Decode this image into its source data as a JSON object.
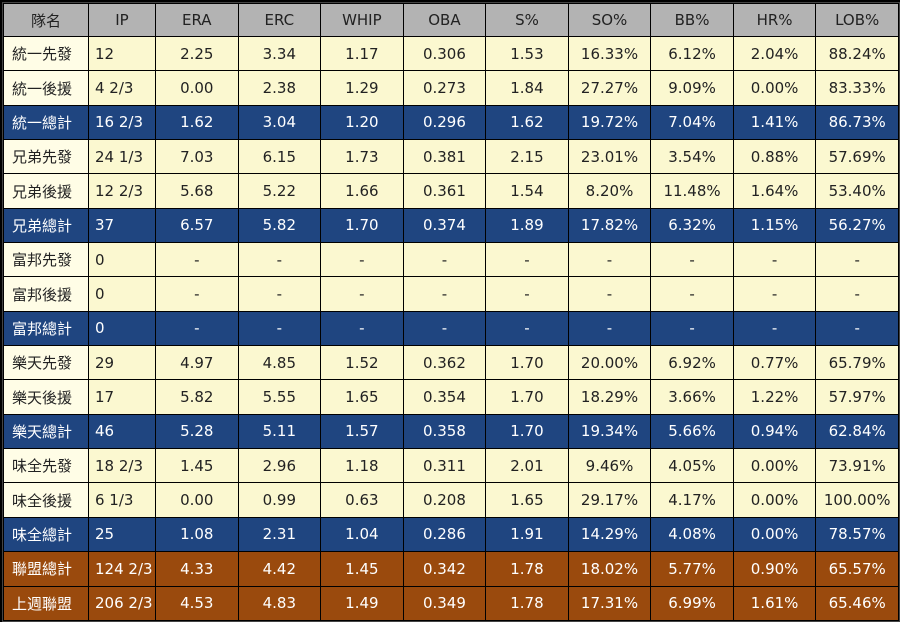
{
  "chart_data": {
    "type": "table",
    "columns": [
      "隊名",
      "IP",
      "ERA",
      "ERC",
      "WHIP",
      "OBA",
      "S%",
      "SO%",
      "BB%",
      "HR%",
      "LOB%"
    ],
    "rows": [
      {
        "kind": "normal",
        "cells": [
          "統一先發",
          "12",
          "2.25",
          "3.34",
          "1.17",
          "0.306",
          "1.53",
          "16.33%",
          "6.12%",
          "2.04%",
          "88.24%"
        ]
      },
      {
        "kind": "normal",
        "cells": [
          "統一後援",
          "4 2/3",
          "0.00",
          "2.38",
          "1.29",
          "0.273",
          "1.84",
          "27.27%",
          "9.09%",
          "0.00%",
          "83.33%"
        ]
      },
      {
        "kind": "total",
        "cells": [
          "統一總計",
          "16 2/3",
          "1.62",
          "3.04",
          "1.20",
          "0.296",
          "1.62",
          "19.72%",
          "7.04%",
          "1.41%",
          "86.73%"
        ]
      },
      {
        "kind": "normal",
        "cells": [
          "兄弟先發",
          "24 1/3",
          "7.03",
          "6.15",
          "1.73",
          "0.381",
          "2.15",
          "23.01%",
          "3.54%",
          "0.88%",
          "57.69%"
        ]
      },
      {
        "kind": "normal",
        "cells": [
          "兄弟後援",
          "12 2/3",
          "5.68",
          "5.22",
          "1.66",
          "0.361",
          "1.54",
          "8.20%",
          "11.48%",
          "1.64%",
          "53.40%"
        ]
      },
      {
        "kind": "total",
        "cells": [
          "兄弟總計",
          "37",
          "6.57",
          "5.82",
          "1.70",
          "0.374",
          "1.89",
          "17.82%",
          "6.32%",
          "1.15%",
          "56.27%"
        ]
      },
      {
        "kind": "normal",
        "cells": [
          "富邦先發",
          "0",
          "-",
          "-",
          "-",
          "-",
          "-",
          "-",
          "-",
          "-",
          "-"
        ]
      },
      {
        "kind": "normal",
        "cells": [
          "富邦後援",
          "0",
          "-",
          "-",
          "-",
          "-",
          "-",
          "-",
          "-",
          "-",
          "-"
        ]
      },
      {
        "kind": "total",
        "cells": [
          "富邦總計",
          "0",
          "-",
          "-",
          "-",
          "-",
          "-",
          "-",
          "-",
          "-",
          "-"
        ]
      },
      {
        "kind": "normal",
        "cells": [
          "樂天先發",
          "29",
          "4.97",
          "4.85",
          "1.52",
          "0.362",
          "1.70",
          "20.00%",
          "6.92%",
          "0.77%",
          "65.79%"
        ]
      },
      {
        "kind": "normal",
        "cells": [
          "樂天後援",
          "17",
          "5.82",
          "5.55",
          "1.65",
          "0.354",
          "1.70",
          "18.29%",
          "3.66%",
          "1.22%",
          "57.97%"
        ]
      },
      {
        "kind": "total",
        "cells": [
          "樂天總計",
          "46",
          "5.28",
          "5.11",
          "1.57",
          "0.358",
          "1.70",
          "19.34%",
          "5.66%",
          "0.94%",
          "62.84%"
        ]
      },
      {
        "kind": "normal",
        "cells": [
          "味全先發",
          "18 2/3",
          "1.45",
          "2.96",
          "1.18",
          "0.311",
          "2.01",
          "9.46%",
          "4.05%",
          "0.00%",
          "73.91%"
        ]
      },
      {
        "kind": "normal",
        "cells": [
          "味全後援",
          "6 1/3",
          "0.00",
          "0.99",
          "0.63",
          "0.208",
          "1.65",
          "29.17%",
          "4.17%",
          "0.00%",
          "100.00%"
        ]
      },
      {
        "kind": "total",
        "cells": [
          "味全總計",
          "25",
          "1.08",
          "2.31",
          "1.04",
          "0.286",
          "1.91",
          "14.29%",
          "4.08%",
          "0.00%",
          "78.57%"
        ]
      },
      {
        "kind": "league",
        "cells": [
          "聯盟總計",
          "124 2/3",
          "4.33",
          "4.42",
          "1.45",
          "0.342",
          "1.78",
          "18.02%",
          "5.77%",
          "0.90%",
          "65.57%"
        ]
      },
      {
        "kind": "league",
        "cells": [
          "上週聯盟",
          "206 2/3",
          "4.53",
          "4.83",
          "1.49",
          "0.349",
          "1.78",
          "17.31%",
          "6.99%",
          "1.61%",
          "65.46%"
        ]
      }
    ]
  }
}
